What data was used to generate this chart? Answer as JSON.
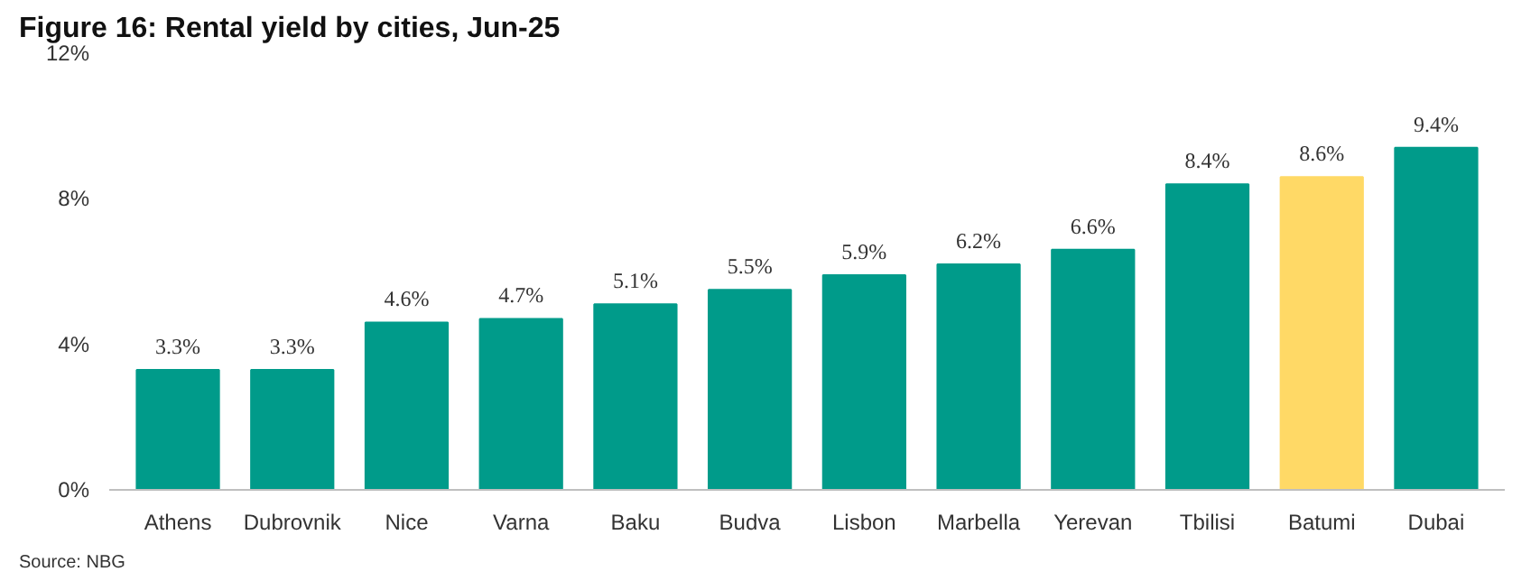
{
  "chart_data": {
    "type": "bar",
    "title": "Figure 16: Rental yield by cities, Jun-25",
    "categories": [
      "Athens",
      "Dubrovnik",
      "Nice",
      "Varna",
      "Baku",
      "Budva",
      "Lisbon",
      "Marbella",
      "Yerevan",
      "Tbilisi",
      "Batumi",
      "Dubai"
    ],
    "values": [
      3.3,
      3.3,
      4.6,
      4.7,
      5.1,
      5.5,
      5.9,
      6.2,
      6.6,
      8.4,
      8.6,
      9.4
    ],
    "colors": [
      "#009b8a",
      "#009b8a",
      "#009b8a",
      "#009b8a",
      "#009b8a",
      "#009b8a",
      "#009b8a",
      "#009b8a",
      "#009b8a",
      "#009b8a",
      "#ffd966",
      "#009b8a"
    ],
    "value_labels": [
      "3.3%",
      "3.3%",
      "4.6%",
      "4.7%",
      "5.1%",
      "5.5%",
      "5.9%",
      "6.2%",
      "6.6%",
      "8.4%",
      "8.6%",
      "9.4%"
    ],
    "ylim": [
      0,
      12
    ],
    "yticks": [
      {
        "value": 0,
        "label": "0%"
      },
      {
        "value": 4,
        "label": "4%"
      },
      {
        "value": 8,
        "label": "8%"
      },
      {
        "value": 12,
        "label": "12%"
      }
    ],
    "grid": false,
    "annotations": [
      "Source: NBG"
    ]
  }
}
